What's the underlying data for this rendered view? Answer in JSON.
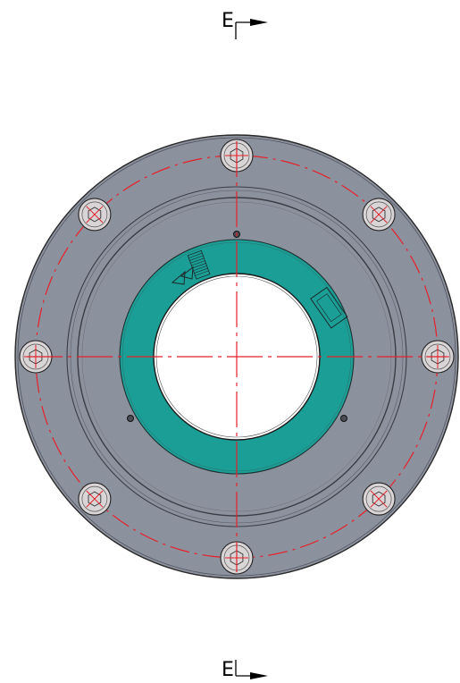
{
  "drawing": {
    "section_marker_top": {
      "label": "E"
    },
    "section_marker_bottom": {
      "label": "E"
    },
    "bolt_count": 8,
    "colors": {
      "flange": "#8c919e",
      "flange_edge": "#2a2a2a",
      "sensor_ring": "#1b9e96",
      "bore": "#ffffff",
      "bolt_head": "#d9d4d6",
      "centerline": "#e5212b"
    }
  }
}
